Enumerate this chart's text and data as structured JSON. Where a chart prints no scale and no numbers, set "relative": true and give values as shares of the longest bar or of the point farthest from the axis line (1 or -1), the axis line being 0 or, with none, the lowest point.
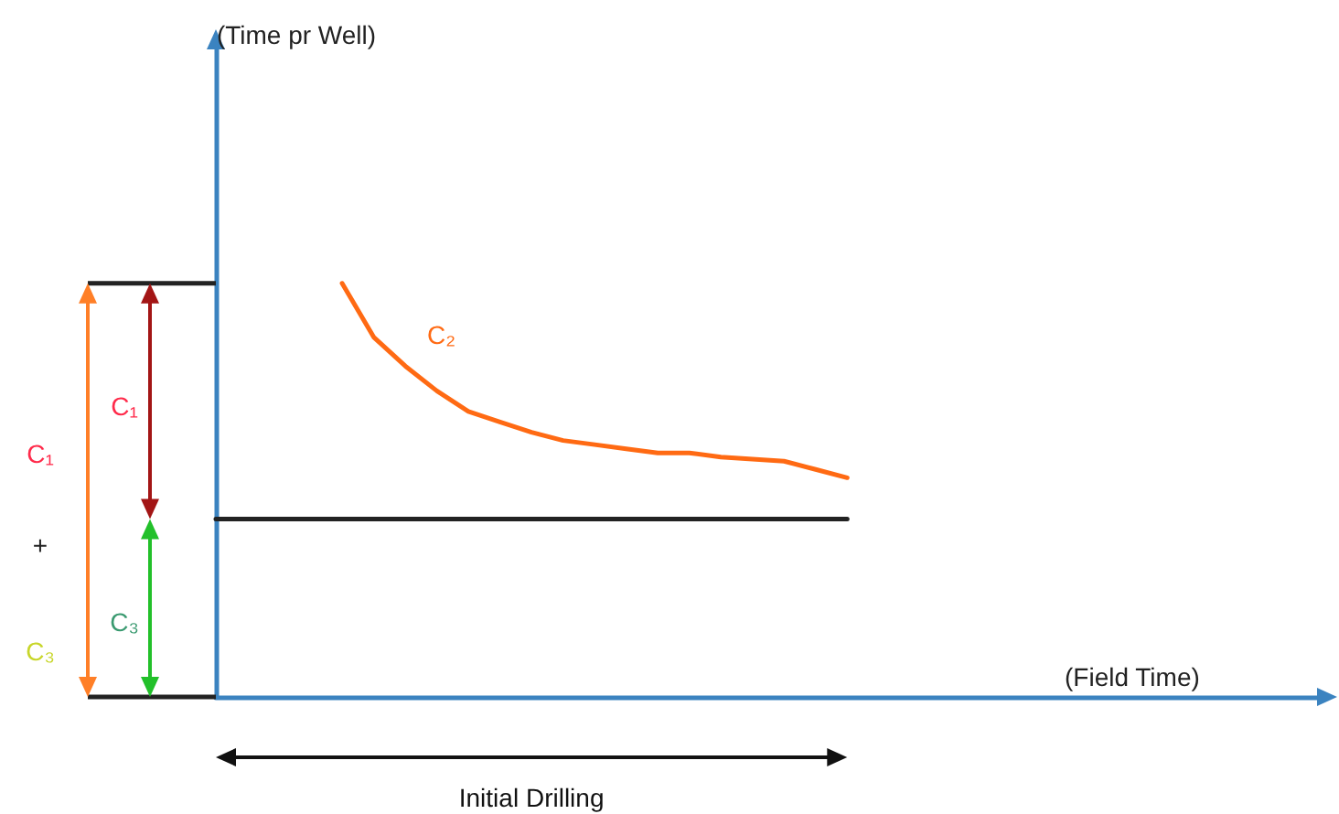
{
  "chart_data": {
    "type": "line",
    "relative": true,
    "xlabel": "(Field Time)",
    "categories": [
      null,
      null,
      null,
      null,
      null,
      null,
      null,
      null,
      null,
      null,
      null,
      null,
      null,
      null,
      null,
      null,
      null,
      null,
      null,
      null,
      null,
      null,
      null,
      null,
      null,
      null,
      null,
      null,
      null,
      null,
      null,
      null,
      null,
      null,
      null,
      null
    ],
    "series": [
      {
        "name": "C₂",
        "color": "#ff6a13",
        "values": [
          null,
          null,
          null,
          null,
          1.0,
          0.87,
          0.8,
          0.74,
          0.69,
          0.665,
          0.64,
          0.62,
          0.61,
          0.6,
          0.59,
          0.59,
          0.58,
          0.575,
          0.57,
          0.55,
          0.53,
          null,
          null,
          null,
          null,
          null,
          null,
          null,
          null,
          null,
          null,
          null,
          null,
          null,
          null,
          null
        ]
      },
      {
        "color": "#222222",
        "values": [
          0.43,
          0.43,
          0.43,
          0.43,
          0.43,
          0.43,
          0.43,
          0.43,
          0.43,
          0.43,
          0.43,
          0.43,
          0.43,
          0.43,
          0.43,
          0.43,
          0.43,
          0.43,
          0.43,
          0.43,
          0.43,
          null,
          null,
          null,
          null,
          null,
          null,
          null,
          null,
          null,
          null,
          null,
          null,
          null,
          null,
          null
        ]
      }
    ],
    "annotations": [
      "C₁",
      "+",
      "C₃",
      "C₁",
      "C₃",
      "Initial Drilling",
      "(Time pr Well)"
    ],
    "grid": false,
    "legend": false,
    "marker": "none",
    "line_style": "solid"
  }
}
